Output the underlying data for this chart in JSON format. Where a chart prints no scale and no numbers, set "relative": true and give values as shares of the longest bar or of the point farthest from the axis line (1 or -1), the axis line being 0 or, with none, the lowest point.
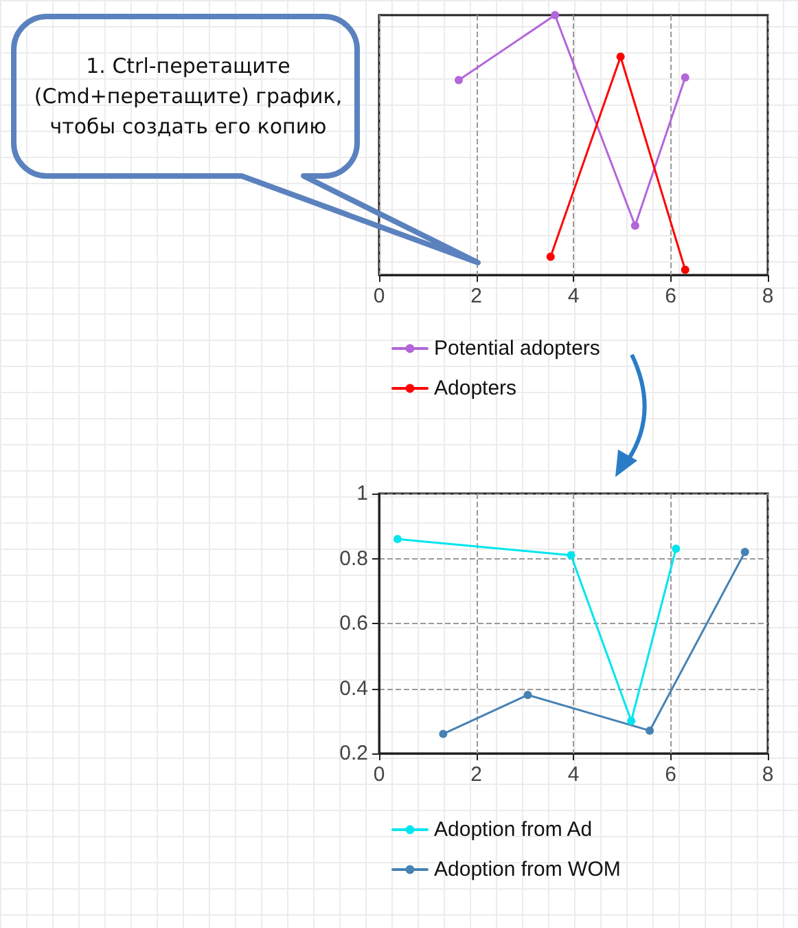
{
  "chart_data": [
    {
      "type": "line",
      "relative": true,
      "xlim": [
        0,
        8
      ],
      "xticks": [
        0,
        2,
        4,
        6,
        8
      ],
      "grid": "x",
      "legend": "bottom",
      "marker": "circle",
      "line_style": "solid",
      "annotations": [
        "1. Ctrl-перетащите (Cmd+перетащите) график, чтобы создать его копию"
      ],
      "series": [
        {
          "name": "Potential adopters",
          "color": "#b366d9",
          "x": [
            1.64,
            3.62,
            5.27,
            6.3
          ],
          "values": [
            0.75,
            1,
            0.19,
            0.76
          ]
        },
        {
          "name": "Adopters",
          "color": "#ff0000",
          "x": [
            3.53,
            4.97,
            6.3
          ],
          "values": [
            0.07,
            0.84,
            0.02
          ]
        }
      ]
    },
    {
      "type": "line",
      "xlim": [
        0,
        8
      ],
      "xticks": [
        0,
        2,
        4,
        6,
        8
      ],
      "ylim": [
        0.2,
        1
      ],
      "yticks": [
        0.2,
        0.4,
        0.6,
        0.8,
        1
      ],
      "grid": true,
      "legend": "bottom",
      "marker": "circle",
      "line_style": "solid",
      "series": [
        {
          "name": "Adoption from Ad",
          "color": "#00e5ee",
          "x": [
            0.38,
            3.95,
            5.19,
            6.11
          ],
          "values": [
            0.86,
            0.81,
            0.3,
            0.83
          ]
        },
        {
          "name": "Adoption from WOM",
          "color": "#4682b4",
          "x": [
            1.32,
            3.06,
            5.57,
            7.53
          ],
          "values": [
            0.26,
            0.38,
            0.27,
            0.82
          ]
        }
      ]
    }
  ]
}
